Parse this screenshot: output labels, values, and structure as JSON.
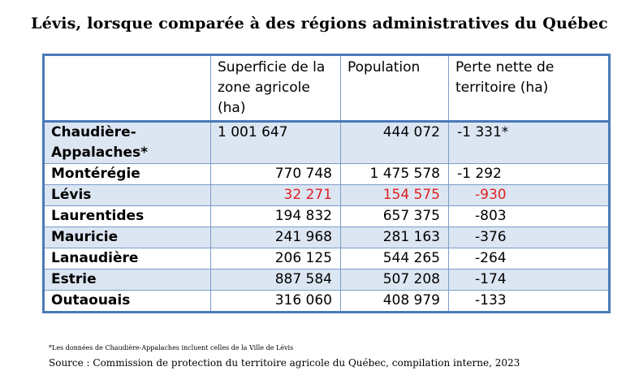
{
  "title": "Lévis, lorsque comparée à des régions administratives du Québec",
  "table": {
    "headers": [
      "",
      "Superficie de la zone agricole (ha)",
      "Population",
      "Perte nette de territoire (ha)"
    ],
    "rows": [
      {
        "region": "Chaudière-Appalaches*",
        "area": "1 001 647",
        "population": "444 072",
        "loss": "-1 331*"
      },
      {
        "region": "Montérégie",
        "area": "770 748",
        "population": "1 475 578",
        "loss": "-1 292"
      },
      {
        "region": "Lévis",
        "area": "32 271",
        "population": "154 575",
        "loss": "-930"
      },
      {
        "region": "Laurentides",
        "area": "194 832",
        "population": "657 375",
        "loss": "-803"
      },
      {
        "region": "Mauricie",
        "area": "241 968",
        "population": "281 163",
        "loss": "-376"
      },
      {
        "region": "Lanaudière",
        "area": "206 125",
        "population": "544 265",
        "loss": "-264"
      },
      {
        "region": "Estrie",
        "area": "887 584",
        "population": "507 208",
        "loss": "-174"
      },
      {
        "region": "Outaouais",
        "area": "316 060",
        "population": "408 979",
        "loss": "-133"
      }
    ],
    "highlight_color": "#e02020",
    "shade_color": "#dce6f2",
    "border_color": "#4a7ab8"
  },
  "footnote": "*Les données de Chaudière-Appalaches incluent celles de la Ville de Lévis",
  "source": "Source : Commission de protection du territoire agricole du Québec, compilation interne, 2023"
}
